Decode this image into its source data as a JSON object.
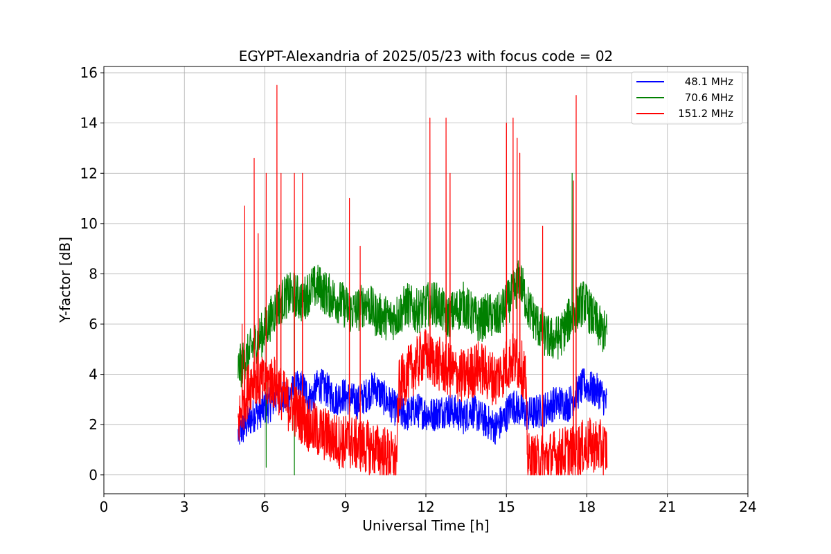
{
  "chart_data": {
    "type": "line",
    "title": "EGYPT-Alexandria of 2025/05/23 with focus code = 02",
    "xlabel": "Universal Time [h]",
    "ylabel": "Y-factor [dB]",
    "xlim": [
      0,
      24
    ],
    "ylim": [
      -0.75,
      16.25
    ],
    "x_ticks": [
      "0",
      "3",
      "6",
      "9",
      "12",
      "15",
      "18",
      "21",
      "24"
    ],
    "y_ticks": [
      "0",
      "2",
      "4",
      "6",
      "8",
      "10",
      "12",
      "14",
      "16"
    ],
    "grid": true,
    "legend_position": "top-right",
    "series": [
      {
        "name": "48.1 MHz",
        "color": "#0000ff",
        "x": [
          5.0,
          5.3,
          5.6,
          5.9,
          6.2,
          6.5,
          6.8,
          7.1,
          7.4,
          7.7,
          8.0,
          8.3,
          8.6,
          8.9,
          9.2,
          9.5,
          9.8,
          10.1,
          10.4,
          10.7,
          11.0,
          11.3,
          11.6,
          11.9,
          12.2,
          12.5,
          12.8,
          13.1,
          13.4,
          13.7,
          14.0,
          14.3,
          14.6,
          14.9,
          15.2,
          15.5,
          15.8,
          16.1,
          16.4,
          16.7,
          17.0,
          17.3,
          17.6,
          17.9,
          18.2,
          18.5,
          18.75
        ],
        "values": [
          1.6,
          2.0,
          2.4,
          2.6,
          2.8,
          3.2,
          3.0,
          3.4,
          3.5,
          3.0,
          3.6,
          3.4,
          3.0,
          3.2,
          3.0,
          2.9,
          3.2,
          3.5,
          3.1,
          2.8,
          2.5,
          2.4,
          2.6,
          2.5,
          2.4,
          2.5,
          2.6,
          2.5,
          2.3,
          2.6,
          2.3,
          2.1,
          1.9,
          2.2,
          2.8,
          2.6,
          2.4,
          2.5,
          2.6,
          2.8,
          2.9,
          2.8,
          3.2,
          3.6,
          3.4,
          3.3,
          2.8
        ]
      },
      {
        "name": "70.6 MHz",
        "color": "#008000",
        "x": [
          5.0,
          5.3,
          5.6,
          5.9,
          6.2,
          6.5,
          6.8,
          7.1,
          7.4,
          7.7,
          8.0,
          8.3,
          8.6,
          8.9,
          9.2,
          9.5,
          9.8,
          10.1,
          10.4,
          10.7,
          11.0,
          11.3,
          11.6,
          11.9,
          12.2,
          12.5,
          12.8,
          13.1,
          13.4,
          13.7,
          14.0,
          14.3,
          14.6,
          14.9,
          15.2,
          15.5,
          15.8,
          16.1,
          16.4,
          16.7,
          17.0,
          17.3,
          17.6,
          17.9,
          18.2,
          18.5,
          18.75
        ],
        "values": [
          4.2,
          4.6,
          5.2,
          5.6,
          6.2,
          6.8,
          7.1,
          7.2,
          6.9,
          7.4,
          7.5,
          7.2,
          7.0,
          6.8,
          6.5,
          6.6,
          6.9,
          6.4,
          6.3,
          6.2,
          6.4,
          6.8,
          6.5,
          6.6,
          6.9,
          6.7,
          6.3,
          6.5,
          6.8,
          6.4,
          6.1,
          6.4,
          6.2,
          6.6,
          7.1,
          7.8,
          6.7,
          6.1,
          5.6,
          5.4,
          5.5,
          6.1,
          6.6,
          6.9,
          6.3,
          5.8,
          5.6
        ]
      },
      {
        "name": "151.2 MHz",
        "color": "#ff0000",
        "x": [
          5.0,
          5.3,
          5.6,
          5.9,
          6.2,
          6.5,
          6.8,
          7.1,
          7.4,
          7.7,
          8.0,
          8.3,
          8.6,
          8.9,
          9.2,
          9.5,
          9.8,
          10.1,
          10.4,
          10.7,
          10.9,
          11.0,
          11.3,
          11.6,
          11.9,
          12.2,
          12.5,
          12.8,
          13.1,
          13.4,
          13.7,
          14.0,
          14.3,
          14.6,
          14.9,
          15.2,
          15.5,
          15.7,
          15.8,
          16.1,
          16.4,
          16.7,
          17.0,
          17.3,
          17.6,
          17.9,
          18.2,
          18.5,
          18.75
        ],
        "values": [
          2.0,
          3.2,
          4.0,
          3.6,
          3.8,
          3.5,
          2.9,
          2.6,
          2.3,
          1.9,
          1.7,
          1.6,
          1.4,
          1.3,
          1.3,
          1.2,
          1.1,
          1.0,
          0.9,
          0.7,
          0.6,
          3.5,
          4.0,
          4.3,
          4.8,
          4.6,
          4.4,
          4.2,
          4.0,
          3.9,
          4.1,
          4.3,
          4.0,
          3.8,
          4.2,
          4.6,
          4.4,
          4.0,
          0.6,
          0.5,
          0.6,
          0.7,
          0.8,
          0.9,
          1.0,
          1.1,
          1.2,
          1.1,
          1.0
        ]
      }
    ],
    "spikes": [
      {
        "series": "151.2 MHz",
        "x": [
          5.15,
          5.25,
          5.6,
          5.75,
          6.05,
          6.45,
          6.6,
          7.1,
          7.4,
          9.15,
          9.55,
          12.15,
          12.75,
          12.9,
          15.0,
          15.25,
          15.4,
          15.5,
          16.35,
          17.5,
          17.6
        ],
        "values": [
          6.0,
          10.7,
          12.6,
          9.6,
          12.0,
          15.5,
          12.0,
          12.0,
          12.0,
          11.0,
          9.1,
          14.2,
          14.2,
          12.0,
          14.0,
          14.2,
          13.4,
          12.8,
          9.9,
          11.7,
          15.1
        ]
      },
      {
        "series": "70.6 MHz",
        "x": [
          17.45,
          17.6
        ],
        "values": [
          12.0,
          10.0
        ]
      }
    ],
    "dips": [
      {
        "series": "70.6 MHz",
        "x": [
          6.05,
          7.1
        ],
        "values": [
          0.3,
          0.0
        ]
      }
    ]
  }
}
